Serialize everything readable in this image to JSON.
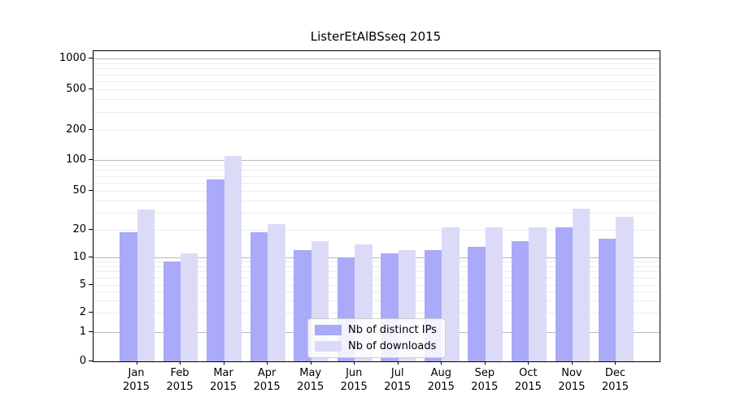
{
  "title": "ListerEtAlBSseq 2015",
  "chart_data": {
    "type": "bar",
    "title": "ListerEtAlBSseq 2015",
    "xlabel": "",
    "ylabel": "",
    "categories": [
      "Jan",
      "Feb",
      "Mar",
      "Apr",
      "May",
      "Jun",
      "Jul",
      "Aug",
      "Sep",
      "Oct",
      "Nov",
      "Dec"
    ],
    "category_year": "2015",
    "series": [
      {
        "name": "Nb of distinct IPs",
        "color": "#aaaaf8",
        "values": [
          19,
          9,
          65,
          19,
          12,
          10,
          11,
          12,
          13,
          15,
          21,
          16
        ]
      },
      {
        "name": "Nb of downloads",
        "color": "#dbdbf8",
        "values": [
          32,
          11,
          110,
          23,
          15,
          14,
          12,
          21,
          21,
          21,
          33,
          27
        ]
      }
    ],
    "yscale": "log-like",
    "y_ticks": [
      0,
      1,
      2,
      5,
      10,
      20,
      50,
      100,
      200,
      500,
      1000
    ],
    "ylim": [
      0,
      1500
    ],
    "grid": "on",
    "legend_position": "lower-center"
  },
  "legend": {
    "items": [
      {
        "label": "Nb of distinct IPs",
        "color": "#aaaaf8"
      },
      {
        "label": "Nb of downloads",
        "color": "#dbdbf8"
      }
    ]
  },
  "colors": {
    "bar_dark": "#aaaaf8",
    "bar_light": "#dbdbf8",
    "grid_major": "#b8b8b8",
    "grid_minor": "#ececec",
    "spine": "#000000",
    "background": "#ffffff"
  }
}
